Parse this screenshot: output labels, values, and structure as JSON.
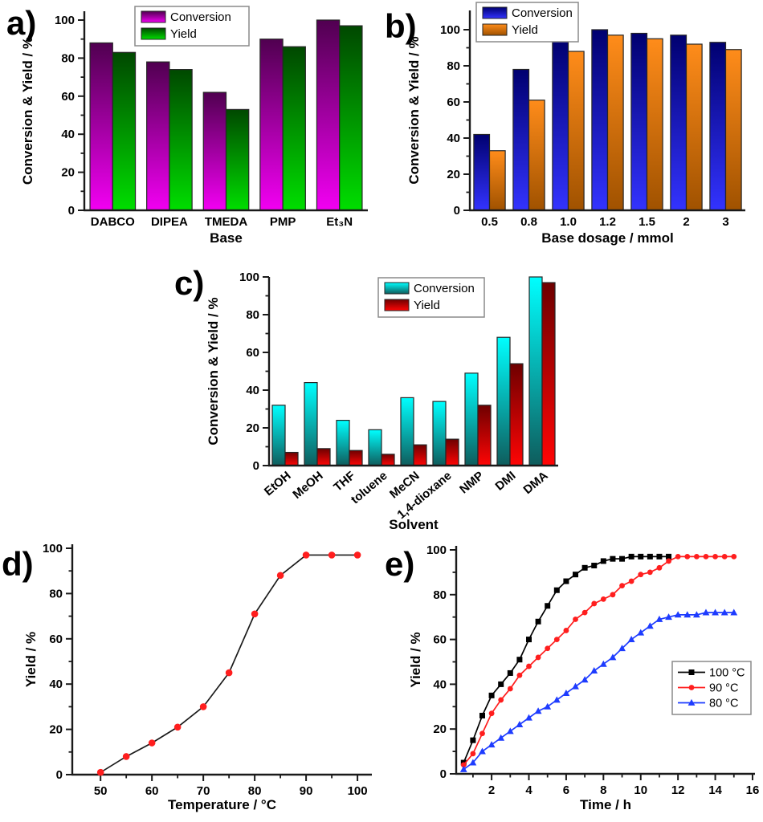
{
  "figure": {
    "background": "#FFFFFF",
    "axis_color": "#1A1A1A",
    "text_color": "#000000"
  },
  "chart_data": [
    {
      "id": "a",
      "panel_label": "a)",
      "type": "bar",
      "xlabel": "Base",
      "ylabel": "Conversion & Yield / %",
      "categories": [
        "DABCO",
        "DIPEA",
        "TMEDA",
        "PMP",
        "Et₃N"
      ],
      "series": [
        {
          "name": "Conversion",
          "values": [
            88,
            78,
            62,
            90,
            100
          ],
          "gradient_top": "#500050",
          "gradient_bottom": "#F200F2"
        },
        {
          "name": "Yield",
          "values": [
            83,
            74,
            53,
            86,
            97
          ],
          "gradient_top": "#004800",
          "gradient_bottom": "#00DE00"
        }
      ],
      "ylim": [
        0,
        105
      ],
      "y_ticks": [
        0,
        20,
        40,
        60,
        80,
        100
      ],
      "y_minor_ticks": [
        10,
        30,
        50,
        70,
        90
      ],
      "grid": false,
      "legend_position": "top-center"
    },
    {
      "id": "b",
      "panel_label": "b)",
      "type": "bar",
      "xlabel": "Base dosage / mmol",
      "ylabel": "Conversion & Yield / %",
      "categories": [
        "0.5",
        "0.8",
        "1.0",
        "1.2",
        "1.5",
        "2",
        "3"
      ],
      "series": [
        {
          "name": "Conversion",
          "values": [
            42,
            78,
            94,
            100,
            98,
            97,
            93
          ],
          "gradient_top": "#000070",
          "gradient_bottom": "#3333FF"
        },
        {
          "name": "Yield",
          "values": [
            33,
            61,
            88,
            97,
            95,
            92,
            89
          ],
          "gradient_top": "#FF8C1A",
          "gradient_bottom": "#A05200"
        }
      ],
      "ylim": [
        0,
        108
      ],
      "y_ticks": [
        0,
        20,
        40,
        60,
        80,
        100
      ],
      "y_minor_ticks": [
        10,
        30,
        50,
        70,
        90
      ],
      "grid": false,
      "legend_position": "top-left"
    },
    {
      "id": "c",
      "panel_label": "c)",
      "type": "bar",
      "xlabel": "Solvent",
      "ylabel": "Conversion & Yield / %",
      "categories": [
        "EtOH",
        "MeOH",
        "THF",
        "toluene",
        "MeCN",
        "1,4-dioxane",
        "NMP",
        "DMI",
        "DMA"
      ],
      "series": [
        {
          "name": "Conversion",
          "values": [
            32,
            44,
            24,
            19,
            36,
            34,
            49,
            68,
            100
          ],
          "gradient_top": "#00FFFF",
          "gradient_bottom": "#0E5C5C"
        },
        {
          "name": "Yield",
          "values": [
            7,
            9,
            8,
            6,
            11,
            14,
            32,
            54,
            97
          ],
          "gradient_top": "#6E0000",
          "gradient_bottom": "#FF0505"
        }
      ],
      "ylim": [
        0,
        100
      ],
      "y_ticks": [
        0,
        20,
        40,
        60,
        80,
        100
      ],
      "y_minor_ticks": [
        10,
        30,
        50,
        70,
        90
      ],
      "grid": false,
      "legend_position": "top-center",
      "x_label_rotation": -40
    },
    {
      "id": "d",
      "panel_label": "d)",
      "type": "line",
      "xlabel": "Temperature / °C",
      "ylabel": "Yield / %",
      "series": [
        {
          "name": "Yield",
          "marker": "circle",
          "marker_color": "#FF1E1E",
          "line_color": "#1A1A1A",
          "x": [
            50,
            55,
            60,
            65,
            70,
            75,
            80,
            85,
            90,
            95,
            100
          ],
          "y": [
            1,
            8,
            14,
            21,
            30,
            45,
            71,
            88,
            97,
            97,
            97
          ]
        }
      ],
      "xlim": [
        44.5,
        102.8
      ],
      "ylim": [
        0,
        100
      ],
      "x_ticks": [
        50,
        60,
        70,
        80,
        90,
        100
      ],
      "x_minor_ticks": [
        55,
        65,
        75,
        85,
        95
      ],
      "y_ticks": [
        0,
        20,
        40,
        60,
        80,
        100
      ],
      "y_minor_ticks": [
        10,
        30,
        50,
        70,
        90
      ],
      "grid": false
    },
    {
      "id": "e",
      "panel_label": "e)",
      "type": "line",
      "xlabel": "Time / h",
      "ylabel": "Yield / %",
      "series": [
        {
          "name": "100 °C",
          "marker": "square",
          "marker_color": "#000000",
          "line_color": "#000000",
          "x": [
            0.5,
            1,
            1.5,
            2,
            2.5,
            3,
            3.5,
            4,
            4.5,
            5,
            5.5,
            6,
            6.5,
            7,
            7.5,
            8,
            8.5,
            9,
            9.5,
            10,
            10.5,
            11,
            11.5
          ],
          "y": [
            5,
            15,
            26,
            35,
            40,
            45,
            51,
            60,
            68,
            75,
            82,
            86,
            89,
            92,
            93,
            95,
            96,
            96,
            97,
            97,
            97,
            97,
            97
          ]
        },
        {
          "name": "90 °C",
          "marker": "circle",
          "marker_color": "#FF1E1E",
          "line_color": "#FF1E1E",
          "x": [
            0.5,
            1,
            1.5,
            2,
            2.5,
            3,
            3.5,
            4,
            4.5,
            5,
            5.5,
            6,
            6.5,
            7,
            7.5,
            8,
            8.5,
            9,
            9.5,
            10,
            10.5,
            11,
            11.5,
            12,
            12.5,
            13,
            13.5,
            14,
            14.5,
            15
          ],
          "y": [
            4,
            9,
            18,
            27,
            33,
            38,
            44,
            48,
            52,
            56,
            60,
            64,
            69,
            72,
            76,
            78,
            80,
            84,
            86,
            89,
            90,
            92,
            95,
            97,
            97,
            97,
            97,
            97,
            97,
            97
          ]
        },
        {
          "name": "80 °C",
          "marker": "triangle",
          "marker_color": "#1E3CFF",
          "line_color": "#1E3CFF",
          "x": [
            0.5,
            1,
            1.5,
            2,
            2.5,
            3,
            3.5,
            4,
            4.5,
            5,
            5.5,
            6,
            6.5,
            7,
            7.5,
            8,
            8.5,
            9,
            9.5,
            10,
            10.5,
            11,
            11.5,
            12,
            12.5,
            13,
            13.5,
            14,
            14.5,
            15
          ],
          "y": [
            2,
            5,
            10,
            13,
            16,
            19,
            22,
            25,
            28,
            30,
            33,
            36,
            39,
            42,
            46,
            49,
            52,
            56,
            60,
            63,
            66,
            69,
            70,
            71,
            71,
            71,
            72,
            72,
            72,
            72
          ]
        }
      ],
      "xlim": [
        0.1,
        16.13
      ],
      "ylim": [
        0,
        100
      ],
      "x_ticks": [
        2,
        4,
        6,
        8,
        10,
        12,
        14,
        16
      ],
      "x_minor_ticks": [
        1,
        3,
        5,
        7,
        9,
        11,
        13,
        15
      ],
      "y_ticks": [
        0,
        20,
        40,
        60,
        80,
        100
      ],
      "y_minor_ticks": [
        10,
        30,
        50,
        70,
        90
      ],
      "grid": false,
      "legend_position": "middle-right"
    }
  ]
}
